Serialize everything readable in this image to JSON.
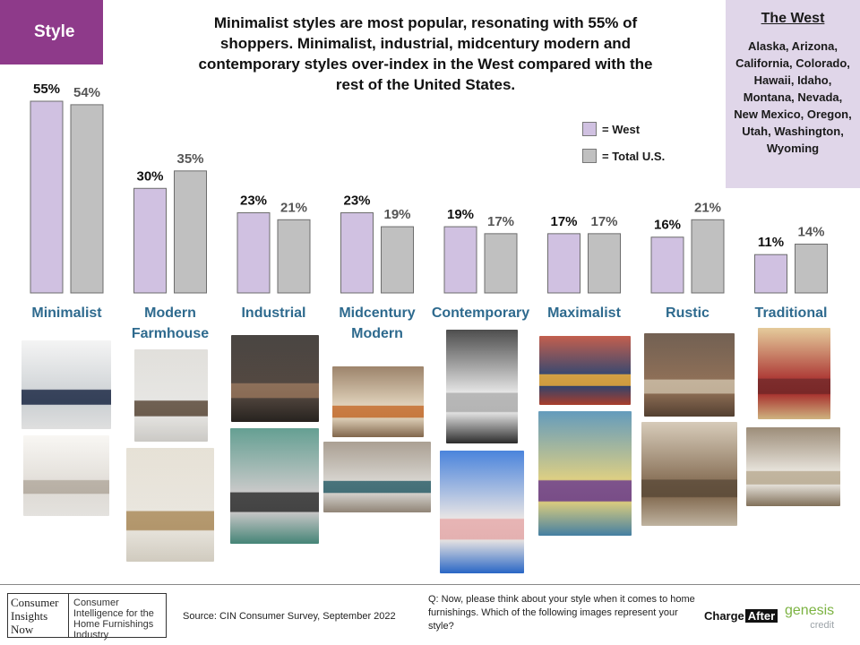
{
  "style_tag": "Style",
  "headline": "Minimalist styles are most popular, resonating with 55% of shoppers. Minimalist, industrial, midcentury modern and contemporary styles over-index in the West compared with the rest of the United States.",
  "region": {
    "title": "The West",
    "states": "Alaska, Arizona, California, Colorado, Hawaii, Idaho, Montana, Nevada, New Mexico, Oregon, Utah, Washington, Wyoming"
  },
  "colors": {
    "west": "#d0c1e1",
    "total": "#c0c0c0",
    "label_blue": "#2e6a8e",
    "tag": "#8e3a8a"
  },
  "chart_data": {
    "type": "bar",
    "categories": [
      "Minimalist",
      "Modern Farmhouse",
      "Industrial",
      "Midcentury Modern",
      "Contemporary",
      "Maximalist",
      "Rustic",
      "Traditional"
    ],
    "series": [
      {
        "name": "= West",
        "values": [
          55,
          30,
          23,
          23,
          19,
          17,
          16,
          11
        ],
        "labels": [
          "55%",
          "30%",
          "23%",
          "23%",
          "19%",
          "17%",
          "16%",
          "11%"
        ]
      },
      {
        "name": "= Total U.S.",
        "values": [
          54,
          35,
          21,
          19,
          17,
          17,
          21,
          14
        ],
        "labels": [
          "54%",
          "35%",
          "21%",
          "19%",
          "17%",
          "17%",
          "21%",
          "14%"
        ]
      }
    ],
    "legend_position": "top-right",
    "grid": false,
    "ylim": [
      0,
      55
    ]
  },
  "photos": [
    {
      "name": "minimalist-photo-1",
      "colors": [
        "#d9dde0",
        "#2d3a55",
        "#f2f2f2"
      ]
    },
    {
      "name": "minimalist-photo-2",
      "colors": [
        "#ece8e2",
        "#bfb6aa",
        "#f7f5f1"
      ]
    },
    {
      "name": "farmhouse-photo-1",
      "colors": [
        "#f0efec",
        "#6b5a4a",
        "#dcdad5"
      ]
    },
    {
      "name": "farmhouse-photo-2",
      "colors": [
        "#f3efe6",
        "#b99a6b",
        "#e2dccf"
      ]
    },
    {
      "name": "industrial-photo-1",
      "colors": [
        "#4a3e36",
        "#8c6b52",
        "#2a2521"
      ]
    },
    {
      "name": "industrial-photo-2",
      "colors": [
        "#cfcfcf",
        "#3f3f3f",
        "#4a8f80"
      ]
    },
    {
      "name": "midcentury-photo-1",
      "colors": [
        "#e9d9bf",
        "#d07a3a",
        "#8c6f52"
      ]
    },
    {
      "name": "midcentury-photo-2",
      "colors": [
        "#dedbd5",
        "#3f6f78",
        "#9c8f80"
      ]
    },
    {
      "name": "contemporary-photo-1",
      "colors": [
        "#eeeeee",
        "#bcbcbc",
        "#2f2f2f"
      ]
    },
    {
      "name": "contemporary-photo-2",
      "colors": [
        "#f2eeee",
        "#f1b8b8",
        "#2c6fd6"
      ]
    },
    {
      "name": "maximalist-photo-1",
      "colors": [
        "#2f3f6a",
        "#d9a13a",
        "#b8432f"
      ]
    },
    {
      "name": "maximalist-photo-2",
      "colors": [
        "#e6d680",
        "#7a4a8a",
        "#4a8ab0"
      ]
    },
    {
      "name": "rustic-photo-1",
      "colors": [
        "#8c6a4f",
        "#c9b69c",
        "#5a4535"
      ]
    },
    {
      "name": "rustic-photo-2",
      "colors": [
        "#8a7054",
        "#5e4a35",
        "#cfc2ad"
      ]
    },
    {
      "name": "traditional-photo-1",
      "colors": [
        "#b0302b",
        "#7a2020",
        "#e0c28a"
      ]
    },
    {
      "name": "traditional-photo-2",
      "colors": [
        "#f0ebe2",
        "#c7b9a0",
        "#8c7a62"
      ]
    }
  ],
  "footer": {
    "logo_left": "Consumer Insights Now",
    "logo_right": "Consumer Intelligence for the Home Furnishings Industry",
    "source": "Source: CIN Consumer Survey, September 2022",
    "question": "Q: Now, please think about your style when it comes to home furnishings. Which of the following images represent your style?",
    "chargeafter_a": "Charge",
    "chargeafter_b": "After",
    "genesis": "genesis",
    "genesis_sub": "credit"
  }
}
